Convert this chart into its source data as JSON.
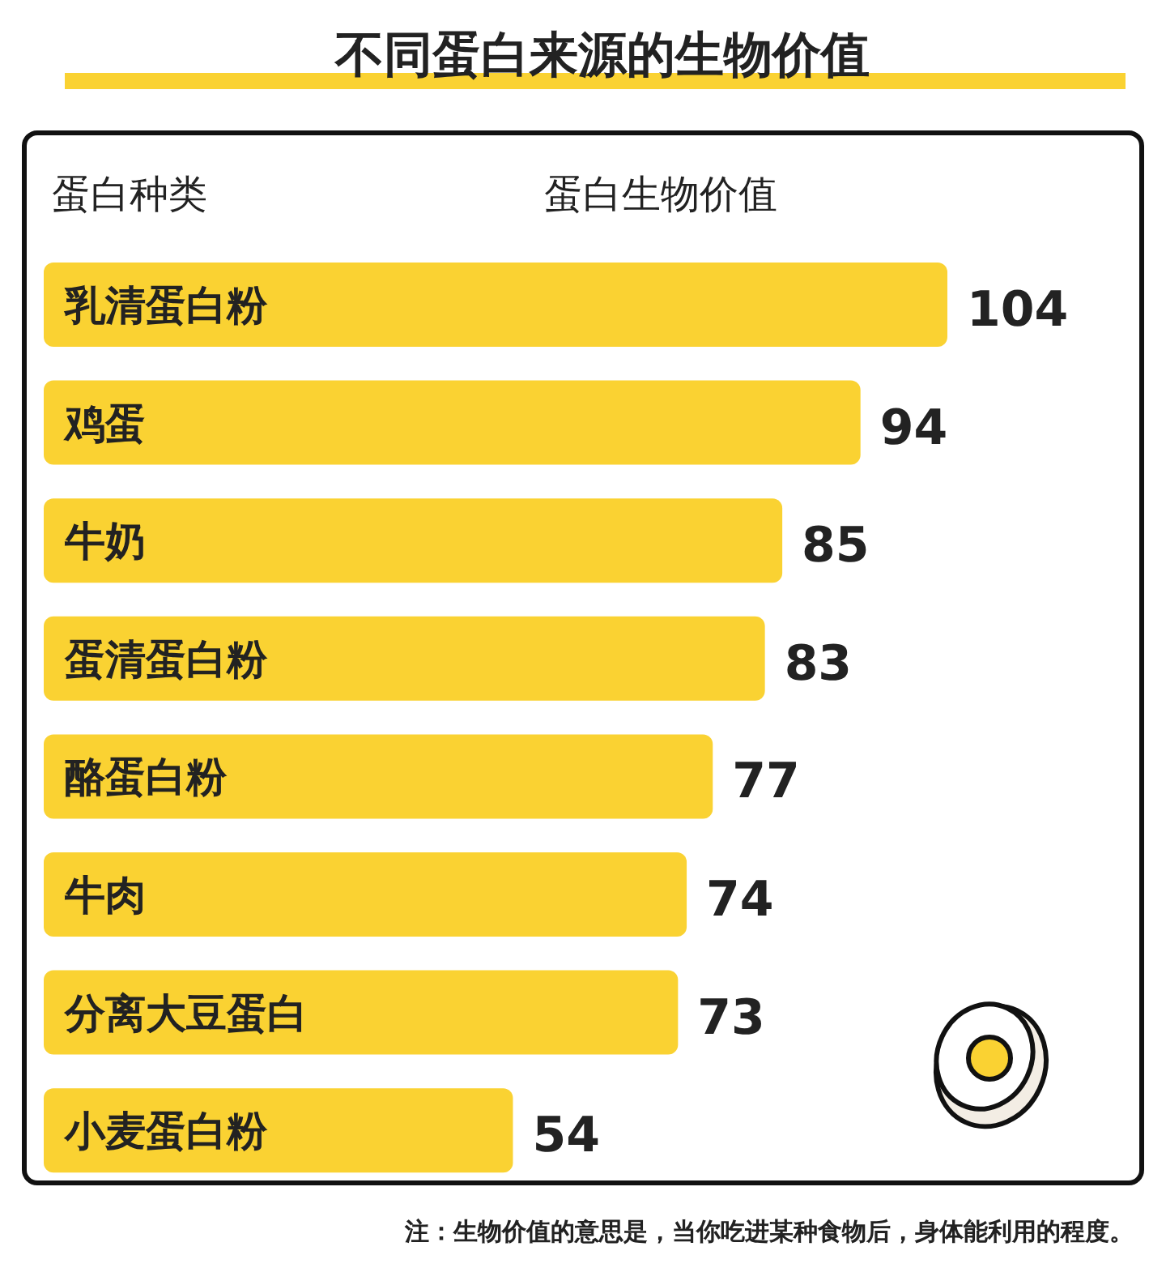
{
  "chart_data": {
    "type": "bar",
    "orientation": "horizontal",
    "title": "不同蛋白来源的生物价值",
    "ylabel": "蛋白种类",
    "xlabel": "蛋白生物价值",
    "categories": [
      "乳清蛋白粉",
      "鸡蛋",
      "牛奶",
      "蛋清蛋白粉",
      "酪蛋白粉",
      "牛肉",
      "分离大豆蛋白",
      "小麦蛋白粉"
    ],
    "values": [
      104,
      94,
      85,
      83,
      77,
      74,
      73,
      54
    ],
    "color": "#fad232",
    "data_labels": true,
    "annotations": [
      "注：生物价值的意思是，当你吃进某种食物后，身体能利用的程度。"
    ]
  }
}
